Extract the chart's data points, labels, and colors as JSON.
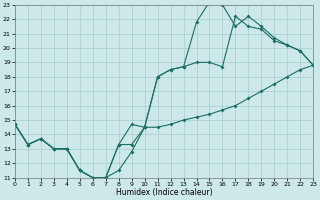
{
  "xlabel": "Humidex (Indice chaleur)",
  "xlim": [
    0,
    23
  ],
  "ylim": [
    11,
    23
  ],
  "yticks": [
    11,
    12,
    13,
    14,
    15,
    16,
    17,
    18,
    19,
    20,
    21,
    22,
    23
  ],
  "xticks": [
    0,
    1,
    2,
    3,
    4,
    5,
    6,
    7,
    8,
    9,
    10,
    11,
    12,
    13,
    14,
    15,
    16,
    17,
    18,
    19,
    20,
    21,
    22,
    23
  ],
  "bg_color": "#cce8e8",
  "line_color": "#1a6e64",
  "grid_color": "#a8cccc",
  "line1_x": [
    0,
    1,
    2,
    3,
    4,
    5,
    6,
    7,
    8,
    9,
    10,
    11,
    12,
    13,
    14,
    15,
    16,
    17,
    18,
    19,
    20,
    21,
    22,
    23
  ],
  "line1_y": [
    14.7,
    13.3,
    13.7,
    13.0,
    13.0,
    11.5,
    11.0,
    11.0,
    11.5,
    12.8,
    14.5,
    14.5,
    14.7,
    15.0,
    15.2,
    15.4,
    15.7,
    16.0,
    16.5,
    17.0,
    17.5,
    18.0,
    18.5,
    18.8
  ],
  "line2_x": [
    0,
    1,
    2,
    3,
    4,
    5,
    6,
    7,
    8,
    9,
    10,
    11,
    12,
    13,
    14,
    15,
    16,
    17,
    18,
    19,
    20,
    21,
    22,
    23
  ],
  "line2_y": [
    14.7,
    13.3,
    13.7,
    13.0,
    13.0,
    11.5,
    11.0,
    11.0,
    13.3,
    14.7,
    14.5,
    18.0,
    18.5,
    18.7,
    19.0,
    19.0,
    18.7,
    22.2,
    21.5,
    21.3,
    20.5,
    20.2,
    19.8,
    18.8
  ],
  "line3_x": [
    0,
    1,
    2,
    3,
    4,
    5,
    6,
    7,
    8,
    9,
    10,
    11,
    12,
    13,
    14,
    15,
    16,
    17,
    18,
    19,
    20,
    21,
    22,
    23
  ],
  "line3_y": [
    14.7,
    13.3,
    13.7,
    13.0,
    13.0,
    11.5,
    11.0,
    11.0,
    13.3,
    13.3,
    14.5,
    18.0,
    18.5,
    18.7,
    21.8,
    23.2,
    23.0,
    21.5,
    22.2,
    21.5,
    20.7,
    20.2,
    19.8,
    18.8
  ]
}
